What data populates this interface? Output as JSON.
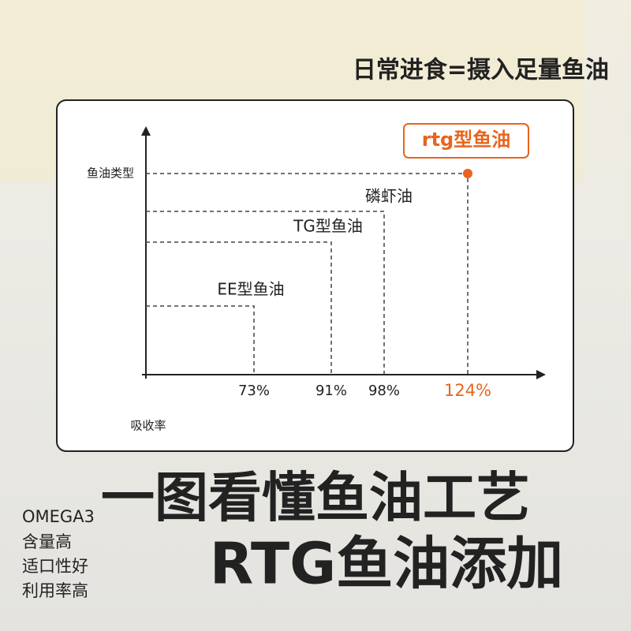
{
  "header": "日常进食=摄入足量鱼油",
  "chart_data": {
    "type": "step",
    "y_label": "鱼油类型",
    "x_label": "吸收率",
    "categories": [
      "EE型鱼油",
      "TG型鱼油",
      "磷虾油",
      "rtg型鱼油"
    ],
    "values": [
      73,
      91,
      98,
      124
    ],
    "value_labels": [
      "73%",
      "91%",
      "98%",
      "124%"
    ],
    "color": "#222222",
    "highlight_color": "#e8641e"
  },
  "headline": [
    "一图看懂鱼油工艺",
    "RTG鱼油添加"
  ],
  "features": [
    "OMEGA3",
    "含量高",
    "适口性好",
    "利用率高"
  ]
}
